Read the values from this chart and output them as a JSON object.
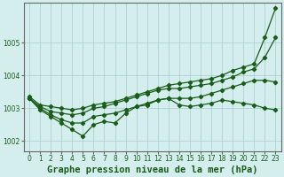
{
  "title": "Graphe pression niveau de la mer (hPa)",
  "background_color": "#d4eeee",
  "grid_color": "#a8cccc",
  "line_color": "#1a5c1a",
  "xlim_min": -0.5,
  "xlim_max": 23.5,
  "ylim_min": 1001.7,
  "ylim_max": 1006.2,
  "yticks": [
    1002,
    1003,
    1004,
    1005
  ],
  "xticks": [
    0,
    1,
    2,
    3,
    4,
    5,
    6,
    7,
    8,
    9,
    10,
    11,
    12,
    13,
    14,
    15,
    16,
    17,
    18,
    19,
    20,
    21,
    22,
    23
  ],
  "series": [
    [
      1003.35,
      1003.1,
      1003.05,
      1003.0,
      1002.95,
      1003.0,
      1003.1,
      1003.15,
      1003.2,
      1003.3,
      1003.4,
      1003.5,
      1003.6,
      1003.7,
      1003.75,
      1003.8,
      1003.85,
      1003.9,
      1004.0,
      1004.15,
      1004.25,
      1004.35,
      1005.15,
      1006.05
    ],
    [
      1003.3,
      1003.05,
      1002.9,
      1002.85,
      1002.8,
      1002.85,
      1003.0,
      1003.05,
      1003.15,
      1003.25,
      1003.35,
      1003.45,
      1003.55,
      1003.6,
      1003.6,
      1003.65,
      1003.7,
      1003.75,
      1003.85,
      1003.95,
      1004.1,
      1004.2,
      1004.55,
      1005.15
    ],
    [
      1003.3,
      1003.0,
      1002.8,
      1002.65,
      1002.55,
      1002.55,
      1002.75,
      1002.8,
      1002.85,
      1002.95,
      1003.05,
      1003.15,
      1003.25,
      1003.3,
      1003.3,
      1003.3,
      1003.35,
      1003.45,
      1003.55,
      1003.65,
      1003.75,
      1003.85,
      1003.85,
      1003.8
    ],
    [
      1003.3,
      1002.95,
      1002.75,
      1002.55,
      1002.35,
      1002.15,
      1002.5,
      1002.6,
      1002.55,
      1002.85,
      1003.05,
      1003.1,
      1003.25,
      1003.3,
      1003.1,
      1003.05,
      1003.1,
      1003.15,
      1003.25,
      1003.2,
      1003.15,
      1003.1,
      1003.0,
      1002.95
    ]
  ],
  "marker": "D",
  "markersize": 2.2,
  "linewidth": 0.9,
  "title_fontsize": 7.5,
  "tick_fontsize": 5.5
}
